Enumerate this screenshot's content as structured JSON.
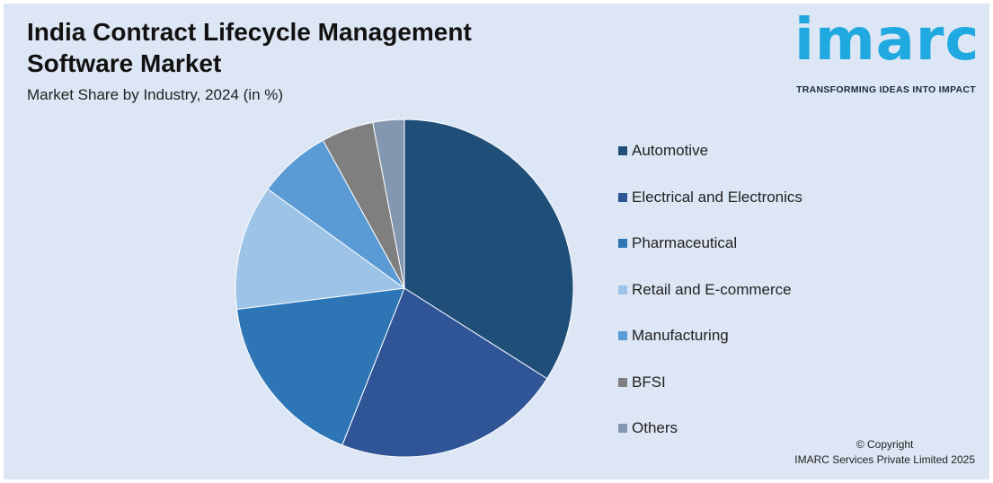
{
  "header": {
    "title_line1": "India Contract Lifecycle Management",
    "title_line2": "Software Market",
    "subtitle": "Market Share by Industry, 2024 (in %)"
  },
  "logo": {
    "text": "imarc",
    "tagline": "TRANSFORMING IDEAS INTO IMPACT",
    "color": "#20a9e0"
  },
  "chart_data": {
    "type": "pie",
    "categories": [
      "Automotive",
      "Electrical and Electronics",
      "Pharmaceutical",
      "Retail and E-commerce",
      "Manufacturing",
      "BFSI",
      "Others"
    ],
    "values": [
      34,
      22,
      17,
      12,
      7,
      5,
      3
    ],
    "colors": [
      "#1f4e79",
      "#2f5597",
      "#2e75b6",
      "#9dc3e6",
      "#5b9bd5",
      "#7f7f7f",
      "#8497b0"
    ],
    "legend_position": "right"
  },
  "footer": {
    "copyright_line1": "© Copyright",
    "copyright_line2": "IMARC Services Private Limited 2025"
  }
}
